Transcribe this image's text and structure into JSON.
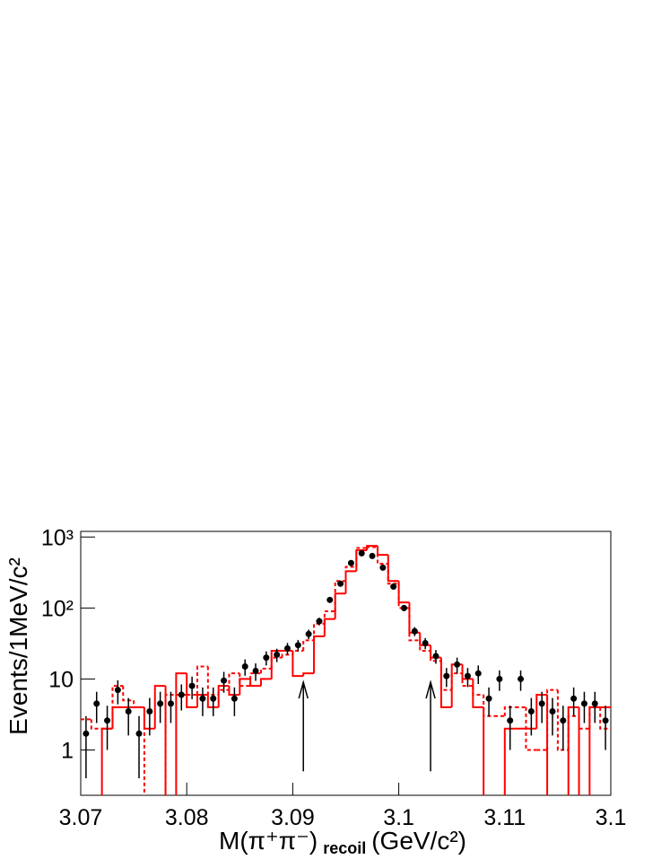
{
  "chart_data": {
    "type": "histogram",
    "ylabel": "Events/1MeV/c²",
    "xlabel": {
      "main": "M(π⁺π⁻)",
      "sub": "recoil",
      "unit": "(GeV/c²)"
    },
    "xlim": [
      3.07,
      3.12
    ],
    "ylim": [
      0.23,
      1200
    ],
    "log_y": true,
    "xticks": [
      3.07,
      3.08,
      3.09,
      3.1,
      3.11,
      {
        "value": 3.12,
        "label": "3.1"
      }
    ],
    "yticks": [
      1,
      10,
      {
        "value": 100,
        "label": "10²"
      },
      {
        "value": 1000,
        "label": "10³"
      }
    ],
    "points": {
      "color": "#000000",
      "x": [
        3.0705,
        3.0715,
        3.0725,
        3.0735,
        3.0745,
        3.0755,
        3.0765,
        3.0775,
        3.0785,
        3.0795,
        3.0805,
        3.0815,
        3.0825,
        3.0835,
        3.0845,
        3.0855,
        3.0865,
        3.0875,
        3.0885,
        3.0895,
        3.0905,
        3.0915,
        3.0925,
        3.0935,
        3.0945,
        3.0955,
        3.0965,
        3.0975,
        3.0985,
        3.0995,
        3.1005,
        3.1015,
        3.1025,
        3.1035,
        3.1045,
        3.1055,
        3.1065,
        3.1075,
        3.1085,
        3.1095,
        3.1105,
        3.1115,
        3.1125,
        3.1135,
        3.1145,
        3.1155,
        3.1165,
        3.1175,
        3.1185,
        3.1195
      ],
      "values": [
        1.7,
        4.5,
        2.6,
        7,
        3.5,
        1.7,
        3.5,
        4.5,
        4.5,
        6,
        8,
        5.3,
        5.3,
        9.5,
        5.3,
        15,
        13,
        20,
        22,
        27,
        30,
        43,
        65,
        130,
        220,
        430,
        590,
        540,
        370,
        200,
        100,
        47,
        32,
        21,
        11,
        16,
        11,
        12,
        5.3,
        10,
        2.6,
        10,
        3.5,
        4.5,
        3.5,
        2.6,
        5.3,
        4.5,
        4.5,
        2.6
      ],
      "errors": [
        1.3,
        2.1,
        1.6,
        2.6,
        1.9,
        1.3,
        1.9,
        2.1,
        2.1,
        2.4,
        2.8,
        2.3,
        2.3,
        3.1,
        2.3,
        3.9,
        3.6,
        4.5,
        4.7,
        5.2,
        5.5,
        6.6,
        8.1,
        11,
        15,
        21,
        24,
        23,
        19,
        14,
        10,
        6.9,
        5.7,
        4.6,
        3.3,
        4,
        3.3,
        3.5,
        2.3,
        3.2,
        1.6,
        3.2,
        1.9,
        2.1,
        1.9,
        1.6,
        2.3,
        2.1,
        2.1,
        1.6
      ]
    },
    "bins": [
      3.07,
      3.071,
      3.072,
      3.073,
      3.074,
      3.075,
      3.076,
      3.077,
      3.078,
      3.079,
      3.08,
      3.081,
      3.082,
      3.083,
      3.084,
      3.085,
      3.086,
      3.087,
      3.088,
      3.089,
      3.09,
      3.091,
      3.092,
      3.093,
      3.094,
      3.095,
      3.096,
      3.097,
      3.098,
      3.099,
      3.1,
      3.101,
      3.102,
      3.103,
      3.104,
      3.105,
      3.106,
      3.107,
      3.108,
      3.109,
      3.11,
      3.111,
      3.112,
      3.113,
      3.114,
      3.115,
      3.116,
      3.117,
      3.118,
      3.119,
      3.12
    ],
    "series": [
      {
        "color": "#ff0000",
        "style": "solid",
        "values": [
          0,
          0,
          2,
          4,
          4,
          4,
          2,
          8,
          0,
          12,
          4,
          6,
          4,
          8,
          6,
          10,
          8,
          10,
          25,
          25,
          11,
          12,
          40,
          70,
          160,
          330,
          650,
          750,
          560,
          240,
          120,
          45,
          30,
          20,
          4,
          16,
          10,
          4,
          0,
          0,
          2,
          2,
          2,
          6,
          0,
          0,
          4,
          0,
          4,
          4
        ]
      },
      {
        "color": "#ff0000",
        "style": "dashed",
        "values": [
          2.7,
          2,
          2,
          8,
          5,
          4,
          0,
          0,
          6,
          6,
          6,
          15,
          6,
          7,
          12,
          8,
          12,
          14,
          20,
          22,
          25,
          35,
          60,
          90,
          240,
          380,
          700,
          720,
          420,
          220,
          100,
          35,
          25,
          18,
          7,
          12,
          8,
          6,
          3,
          3,
          4,
          4,
          1,
          1,
          7,
          1,
          3,
          2,
          4,
          2
        ]
      }
    ],
    "arrows": [
      {
        "x": 3.091,
        "y_start": 0.5,
        "y_end": 9
      },
      {
        "x": 3.103,
        "y_start": 0.5,
        "y_end": 9
      }
    ]
  }
}
